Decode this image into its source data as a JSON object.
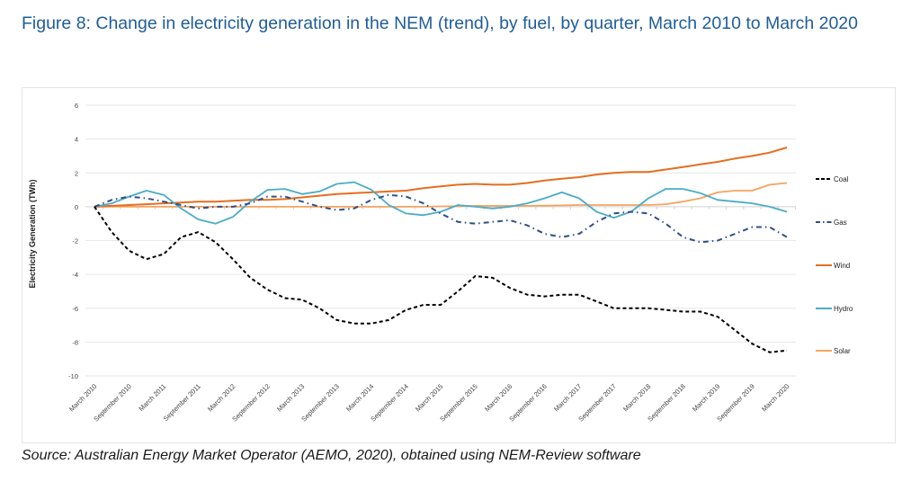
{
  "figure": {
    "title": "Figure 8: Change in electricity generation in the NEM (trend), by fuel, by quarter, March 2010 to March 2020",
    "source": "Source: Australian Energy Market Operator (AEMO, 2020), obtained using NEM-Review software"
  },
  "chart_data": {
    "type": "line",
    "title": "Figure 8: Change in electricity generation in the NEM (trend), by fuel, by quarter, March 2010 to March 2020",
    "xlabel": "",
    "ylabel": "Electricity Generation (TWh)",
    "ylim": [
      -10,
      6
    ],
    "yticks": [
      6,
      4,
      2,
      0,
      -2,
      -4,
      -6,
      -8,
      -10
    ],
    "grid": true,
    "legend_position": "right",
    "x_tick_labels": [
      "March 2010",
      "September 2010",
      "March 2011",
      "September 2011",
      "March 2012",
      "September 2012",
      "March 2013",
      "September 2013",
      "March 2014",
      "September 2014",
      "March 2015",
      "September 2015",
      "March 2016",
      "September 2016",
      "March 2017",
      "September 2017",
      "March 2018",
      "September 2018",
      "March 2019",
      "September 2019",
      "March 2020"
    ],
    "x": [
      "Mar 2010",
      "Jun 2010",
      "Sep 2010",
      "Dec 2010",
      "Mar 2011",
      "Jun 2011",
      "Sep 2011",
      "Dec 2011",
      "Mar 2012",
      "Jun 2012",
      "Sep 2012",
      "Dec 2012",
      "Mar 2013",
      "Jun 2013",
      "Sep 2013",
      "Dec 2013",
      "Mar 2014",
      "Jun 2014",
      "Sep 2014",
      "Dec 2014",
      "Mar 2015",
      "Jun 2015",
      "Sep 2015",
      "Dec 2015",
      "Mar 2016",
      "Jun 2016",
      "Sep 2016",
      "Dec 2016",
      "Mar 2017",
      "Jun 2017",
      "Sep 2017",
      "Dec 2017",
      "Mar 2018",
      "Jun 2018",
      "Sep 2018",
      "Dec 2018",
      "Mar 2019",
      "Jun 2019",
      "Sep 2019",
      "Dec 2019",
      "Mar 2020"
    ],
    "series": [
      {
        "name": "Coal",
        "color": "#000000",
        "style": "dashed",
        "values": [
          0,
          -1.5,
          -2.6,
          -3.1,
          -2.8,
          -1.8,
          -1.5,
          -2.1,
          -3.1,
          -4.2,
          -4.9,
          -5.4,
          -5.5,
          -6.0,
          -6.7,
          -6.9,
          -6.9,
          -6.7,
          -6.1,
          -5.8,
          -5.8,
          -5.0,
          -4.1,
          -4.2,
          -4.8,
          -5.2,
          -5.3,
          -5.2,
          -5.2,
          -5.6,
          -6.0,
          -6.0,
          -6.0,
          -6.1,
          -6.2,
          -6.2,
          -6.5,
          -7.3,
          -8.1,
          -8.6,
          -8.5
        ]
      },
      {
        "name": "Gas",
        "color": "#2f4f8a",
        "style": "dashdot",
        "values": [
          0,
          0.4,
          0.6,
          0.5,
          0.3,
          0.1,
          -0.1,
          0.0,
          0.0,
          0.2,
          0.6,
          0.6,
          0.3,
          0.0,
          -0.2,
          -0.1,
          0.4,
          0.7,
          0.6,
          0.2,
          -0.4,
          -0.9,
          -1.0,
          -0.9,
          -0.8,
          -1.1,
          -1.6,
          -1.8,
          -1.6,
          -0.9,
          -0.4,
          -0.3,
          -0.4,
          -1.0,
          -1.8,
          -2.1,
          -2.0,
          -1.6,
          -1.2,
          -1.2,
          -1.8
        ]
      },
      {
        "name": "Wind",
        "color": "#e56e1f",
        "style": "solid",
        "values": [
          0,
          0.05,
          0.1,
          0.15,
          0.2,
          0.25,
          0.3,
          0.3,
          0.35,
          0.4,
          0.4,
          0.45,
          0.55,
          0.65,
          0.75,
          0.8,
          0.85,
          0.9,
          0.95,
          1.1,
          1.2,
          1.3,
          1.35,
          1.3,
          1.3,
          1.4,
          1.55,
          1.65,
          1.75,
          1.9,
          2.0,
          2.05,
          2.05,
          2.2,
          2.35,
          2.5,
          2.65,
          2.85,
          3.0,
          3.2,
          3.5
        ]
      },
      {
        "name": "Hydro",
        "color": "#4bacc6",
        "style": "solid",
        "values": [
          0,
          0.2,
          0.6,
          0.95,
          0.7,
          -0.1,
          -0.75,
          -1.0,
          -0.6,
          0.3,
          1.0,
          1.05,
          0.75,
          0.9,
          1.35,
          1.45,
          1.0,
          0.1,
          -0.4,
          -0.5,
          -0.3,
          0.1,
          0.0,
          -0.1,
          0.0,
          0.2,
          0.5,
          0.85,
          0.5,
          -0.3,
          -0.65,
          -0.3,
          0.5,
          1.05,
          1.05,
          0.8,
          0.4,
          0.3,
          0.2,
          0.0,
          -0.3
        ]
      },
      {
        "name": "Solar",
        "color": "#f4a460",
        "style": "solid",
        "values": [
          0,
          0,
          0,
          0,
          0,
          0,
          0,
          0,
          0,
          0,
          0,
          0,
          0,
          0,
          0,
          0,
          0,
          0,
          0,
          0,
          0.02,
          0.03,
          0.05,
          0.05,
          0.05,
          0.05,
          0.06,
          0.08,
          0.1,
          0.1,
          0.1,
          0.1,
          0.1,
          0.15,
          0.3,
          0.5,
          0.85,
          0.95,
          0.95,
          1.3,
          1.4
        ]
      }
    ]
  }
}
